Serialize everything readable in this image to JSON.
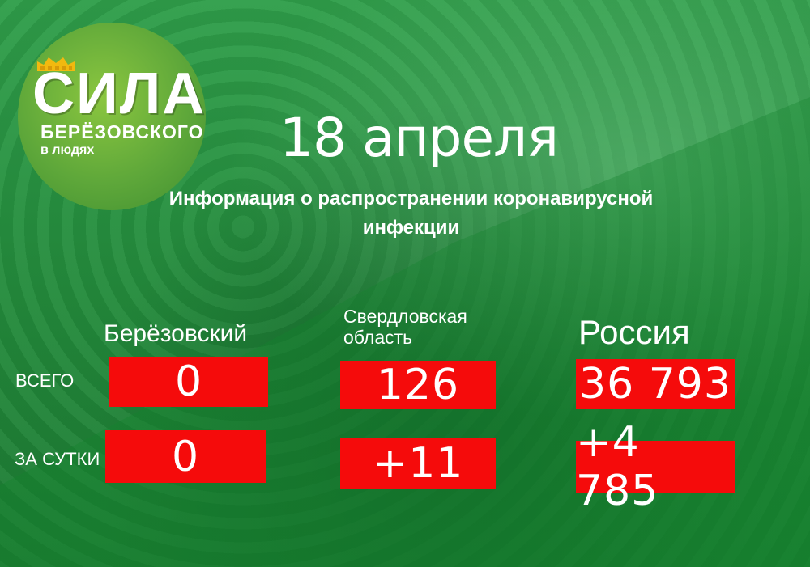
{
  "logo": {
    "title": "СИЛА",
    "subtitle": "БЕРЁЗОВСКОГО",
    "tagline": "в людях"
  },
  "date": "18 апреля",
  "info": {
    "line1": "Информация о распространении коронавирусной",
    "line2": "инфекции"
  },
  "columns": {
    "berezovsky": "Берёзовский",
    "sverdlovsk_line1": "Свердловская",
    "sverdlovsk_line2": "область",
    "russia": "Россия"
  },
  "rows": {
    "total_label": "ВСЕГО",
    "day_label": "ЗА СУТКИ"
  },
  "values": {
    "berezovsky_total": "0",
    "sverdlovsk_total": "126",
    "russia_total": "36 793",
    "berezovsky_day": "0",
    "sverdlovsk_day": "+11",
    "russia_day": "+4 785"
  },
  "colors": {
    "background": "#1f8a3a",
    "logo_circle": "#6fb23a",
    "value_box": "#f50b0b",
    "text": "#ffffff"
  }
}
